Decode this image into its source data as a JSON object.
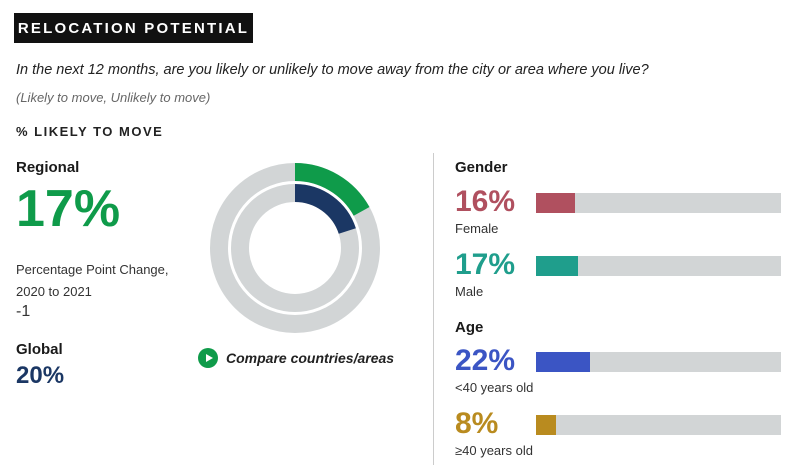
{
  "header": {
    "title": "RELOCATION POTENTIAL"
  },
  "question": "In the next 12 months, are you likely or unlikely to move away from the city or area where you live?",
  "options": "(Likely to move, Unlikely to move)",
  "section_label": "% LIKELY TO MOVE",
  "regional": {
    "label": "Regional",
    "value": "17%",
    "change_label": "Percentage Point Change, 2020 to 2021",
    "change_value": "-1"
  },
  "global": {
    "label": "Global",
    "value": "20%"
  },
  "compare_link": "Compare countries/areas",
  "chart_data": [
    {
      "type": "pie",
      "variant": "nested-donut",
      "series": [
        {
          "name": "Regional",
          "value": 17,
          "color": "#0f9b4a"
        },
        {
          "name": "Global",
          "value": 20,
          "color": "#1b3764"
        }
      ],
      "track_color": "#d2d5d6",
      "max": 100
    },
    {
      "type": "bar",
      "orientation": "horizontal",
      "groups": [
        {
          "label": "Gender",
          "items": [
            {
              "category": "Female",
              "value": 16,
              "display": "16%",
              "color": "#b0505f"
            },
            {
              "category": "Male",
              "value": 17,
              "display": "17%",
              "color": "#1f9e8c"
            }
          ]
        },
        {
          "label": "Age",
          "items": [
            {
              "category": "<40 years old",
              "value": 22,
              "display": "22%",
              "color": "#3b55c4"
            },
            {
              "category": "≥40 years old",
              "value": 8,
              "display": "8%",
              "color": "#b98b1f"
            }
          ]
        }
      ],
      "xlim": [
        0,
        100
      ]
    }
  ]
}
